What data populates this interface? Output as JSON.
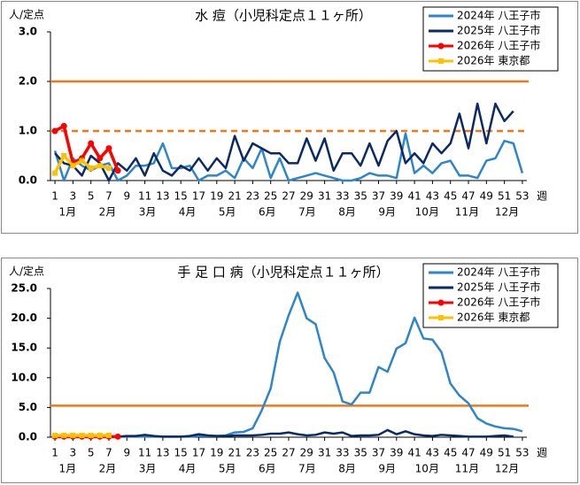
{
  "chart_data": [
    {
      "type": "line",
      "title": "水 痘（小児科定点１１ヶ所）",
      "y_label": "人/定点",
      "x_unit": "週",
      "x": [
        1,
        2,
        3,
        4,
        5,
        6,
        7,
        8,
        9,
        10,
        11,
        12,
        13,
        14,
        15,
        16,
        17,
        18,
        19,
        20,
        21,
        22,
        23,
        24,
        25,
        26,
        27,
        28,
        29,
        30,
        31,
        32,
        33,
        34,
        35,
        36,
        37,
        38,
        39,
        40,
        41,
        42,
        43,
        44,
        45,
        46,
        47,
        48,
        49,
        50,
        51,
        52,
        53
      ],
      "xlim": [
        0.5,
        53.5
      ],
      "xticks": [
        1,
        3,
        5,
        7,
        9,
        11,
        13,
        15,
        17,
        19,
        21,
        23,
        25,
        27,
        29,
        31,
        33,
        35,
        37,
        39,
        41,
        43,
        45,
        47,
        49,
        51,
        53
      ],
      "months": [
        "1月",
        "2月",
        "3月",
        "4月",
        "5月",
        "6月",
        "7月",
        "8月",
        "9月",
        "10月",
        "11月",
        "12月"
      ],
      "ylim": [
        0,
        3
      ],
      "yticks": [
        {
          "value": 0,
          "label": "0.0"
        },
        {
          "value": 1,
          "label": "1.0"
        },
        {
          "value": 2,
          "label": "2.0"
        },
        {
          "value": 3,
          "label": "3.0"
        }
      ],
      "reference_lines": [
        {
          "value": 2,
          "style": "solid",
          "color": "#f07818"
        },
        {
          "value": 1,
          "style": "dashed",
          "color": "#f07818"
        }
      ],
      "legend": "top-right",
      "series": [
        {
          "name": "2024年 八王子市",
          "color": "#2e86c8",
          "values": [
            0.6,
            0.0,
            0.45,
            0.3,
            0.2,
            0.3,
            0.35,
            0.0,
            0.1,
            0.3,
            0.3,
            0.35,
            0.75,
            0.25,
            0.25,
            0.3,
            0.0,
            0.1,
            0.1,
            0.2,
            0.05,
            0.45,
            0.25,
            0.65,
            0.05,
            0.45,
            0.0,
            0.05,
            0.1,
            0.15,
            0.1,
            0.05,
            0.0,
            0.0,
            0.05,
            0.15,
            0.1,
            0.1,
            0.05,
            0.95,
            0.15,
            0.3,
            0.15,
            0.35,
            0.4,
            0.1,
            0.1,
            0.05,
            0.4,
            0.45,
            0.8,
            0.75,
            0.15
          ]
        },
        {
          "name": "2025年 八王子市",
          "color": "#0b2a63",
          "values": [
            0.55,
            0.35,
            0.3,
            0.1,
            0.5,
            0.35,
            0.0,
            0.35,
            0.2,
            0.45,
            0.1,
            0.55,
            0.2,
            0.1,
            0.3,
            0.2,
            0.45,
            0.2,
            0.45,
            0.25,
            0.9,
            0.4,
            0.75,
            0.65,
            0.55,
            0.55,
            0.35,
            0.35,
            0.85,
            0.4,
            0.85,
            0.2,
            0.55,
            0.55,
            0.3,
            0.75,
            0.3,
            0.8,
            1.0,
            0.35,
            0.55,
            0.35,
            0.75,
            0.55,
            0.75,
            1.35,
            0.65,
            1.55,
            0.75,
            1.55,
            1.2,
            1.4,
            null
          ]
        },
        {
          "name": "2026年 八王子市",
          "color": "#ff0000",
          "marker": "circle",
          "values": [
            1.0,
            1.1,
            0.35,
            0.45,
            0.75,
            0.45,
            0.65,
            0.2,
            null,
            null,
            null,
            null,
            null,
            null,
            null,
            null,
            null,
            null,
            null,
            null,
            null,
            null,
            null,
            null,
            null,
            null,
            null,
            null,
            null,
            null,
            null,
            null,
            null,
            null,
            null,
            null,
            null,
            null,
            null,
            null,
            null,
            null,
            null,
            null,
            null,
            null,
            null,
            null,
            null,
            null,
            null,
            null,
            null
          ]
        },
        {
          "name": "2026年 東京都",
          "color": "#ffc000",
          "marker": "square",
          "values": [
            0.15,
            0.5,
            0.3,
            0.4,
            0.25,
            0.3,
            0.25,
            null,
            null,
            null,
            null,
            null,
            null,
            null,
            null,
            null,
            null,
            null,
            null,
            null,
            null,
            null,
            null,
            null,
            null,
            null,
            null,
            null,
            null,
            null,
            null,
            null,
            null,
            null,
            null,
            null,
            null,
            null,
            null,
            null,
            null,
            null,
            null,
            null,
            null,
            null,
            null,
            null,
            null,
            null,
            null,
            null,
            null
          ]
        }
      ]
    },
    {
      "type": "line",
      "title": "手 足 口 病（小児科定点１１ヶ所）",
      "y_label": "人/定点",
      "x_unit": "週",
      "x": [
        1,
        2,
        3,
        4,
        5,
        6,
        7,
        8,
        9,
        10,
        11,
        12,
        13,
        14,
        15,
        16,
        17,
        18,
        19,
        20,
        21,
        22,
        23,
        24,
        25,
        26,
        27,
        28,
        29,
        30,
        31,
        32,
        33,
        34,
        35,
        36,
        37,
        38,
        39,
        40,
        41,
        42,
        43,
        44,
        45,
        46,
        47,
        48,
        49,
        50,
        51,
        52,
        53
      ],
      "xlim": [
        0.5,
        53.5
      ],
      "xticks": [
        1,
        3,
        5,
        7,
        9,
        11,
        13,
        15,
        17,
        19,
        21,
        23,
        25,
        27,
        29,
        31,
        33,
        35,
        37,
        39,
        41,
        43,
        45,
        47,
        49,
        51,
        53
      ],
      "months": [
        "1月",
        "2月",
        "3月",
        "4月",
        "5月",
        "6月",
        "7月",
        "8月",
        "9月",
        "10月",
        "11月",
        "12月"
      ],
      "ylim": [
        0,
        25
      ],
      "yticks": [
        {
          "value": 0,
          "label": "0.0"
        },
        {
          "value": 5,
          "label": "5.0"
        },
        {
          "value": 10,
          "label": "10.0"
        },
        {
          "value": 15,
          "label": "15.0"
        },
        {
          "value": 20,
          "label": "20.0"
        },
        {
          "value": 25,
          "label": "25.0"
        }
      ],
      "reference_lines": [
        {
          "value": 5.3,
          "style": "solid",
          "color": "#f07818"
        }
      ],
      "legend": "top-right",
      "series": [
        {
          "name": "2024年 八王子市",
          "color": "#2e86c8",
          "values": [
            0.3,
            0.2,
            0.1,
            0.1,
            0.1,
            0.1,
            0.1,
            0.1,
            0.1,
            0.1,
            0.1,
            0.1,
            0.1,
            0.1,
            0.1,
            0.1,
            0.2,
            0.2,
            0.2,
            0.3,
            0.8,
            0.9,
            1.5,
            4.5,
            8.2,
            16.0,
            20.5,
            24.3,
            20.0,
            19.0,
            13.3,
            10.9,
            6.0,
            5.5,
            7.5,
            7.5,
            11.8,
            11.0,
            14.9,
            15.8,
            20.1,
            16.6,
            16.4,
            14.3,
            9.0,
            7.0,
            5.7,
            3.2,
            2.3,
            1.8,
            1.5,
            1.4,
            1.0
          ]
        },
        {
          "name": "2025年 八王子市",
          "color": "#0b2a63",
          "values": [
            0.2,
            0.2,
            0.1,
            0.1,
            0.1,
            0.1,
            0.1,
            0.1,
            0.2,
            0.2,
            0.4,
            0.2,
            0.1,
            0.1,
            0.1,
            0.2,
            0.5,
            0.3,
            0.2,
            0.2,
            0.3,
            0.3,
            0.3,
            0.4,
            0.6,
            0.6,
            0.8,
            0.5,
            0.3,
            0.4,
            0.8,
            0.6,
            0.8,
            0.2,
            0.3,
            0.3,
            0.4,
            1.2,
            0.5,
            1.0,
            0.5,
            0.3,
            0.2,
            0.4,
            0.3,
            0.2,
            0.1,
            0.1,
            0.1,
            0.2,
            0.3,
            0.1,
            null
          ]
        },
        {
          "name": "2026年 八王子市",
          "color": "#ff0000",
          "marker": "circle",
          "values": [
            0.1,
            0.1,
            0.1,
            0.1,
            0.1,
            0.1,
            0.1,
            0.1,
            null,
            null,
            null,
            null,
            null,
            null,
            null,
            null,
            null,
            null,
            null,
            null,
            null,
            null,
            null,
            null,
            null,
            null,
            null,
            null,
            null,
            null,
            null,
            null,
            null,
            null,
            null,
            null,
            null,
            null,
            null,
            null,
            null,
            null,
            null,
            null,
            null,
            null,
            null,
            null,
            null,
            null,
            null,
            null,
            null
          ]
        },
        {
          "name": "2026年 東京都",
          "color": "#ffc000",
          "marker": "square",
          "values": [
            0.3,
            0.3,
            0.3,
            0.3,
            0.3,
            0.3,
            0.3,
            null,
            null,
            null,
            null,
            null,
            null,
            null,
            null,
            null,
            null,
            null,
            null,
            null,
            null,
            null,
            null,
            null,
            null,
            null,
            null,
            null,
            null,
            null,
            null,
            null,
            null,
            null,
            null,
            null,
            null,
            null,
            null,
            null,
            null,
            null,
            null,
            null,
            null,
            null,
            null,
            null,
            null,
            null,
            null,
            null,
            null
          ]
        }
      ]
    }
  ]
}
